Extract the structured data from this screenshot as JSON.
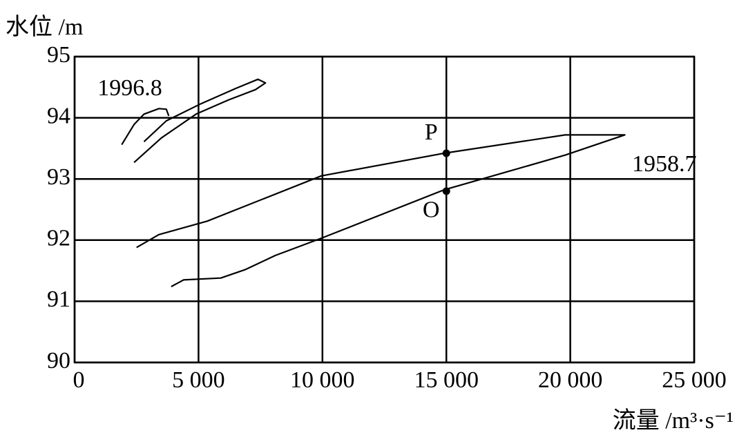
{
  "chart_data": {
    "type": "line",
    "x_label": "流量 /m³·s⁻¹",
    "y_label": "水位 /m",
    "xlim": [
      0,
      25000
    ],
    "ylim": [
      90,
      95
    ],
    "xticks": [
      0,
      {
        "value": 5000,
        "label": "5 000"
      },
      {
        "value": 10000,
        "label": "10 000"
      },
      {
        "value": 15000,
        "label": "15 000"
      },
      {
        "value": 20000,
        "label": "20 000"
      },
      {
        "value": 25000,
        "label": "25 000"
      }
    ],
    "yticks": [
      90,
      91,
      92,
      93,
      94,
      95
    ],
    "grid": true,
    "series": [
      {
        "name": "1958.7",
        "color": "#000000",
        "x": [
          3900,
          4400,
          5900,
          6900,
          8100,
          9950,
          14900,
          19800,
          22200,
          19800,
          14900,
          9950,
          5350,
          3400,
          2500
        ],
        "values": [
          91.24,
          91.35,
          91.38,
          91.52,
          91.75,
          92.03,
          92.82,
          93.39,
          93.72,
          93.72,
          93.42,
          93.05,
          92.31,
          92.09,
          91.88
        ]
      },
      {
        "name": "1996.8",
        "color": "#000000",
        "x": [
          1900,
          2400,
          2800,
          3400,
          3700,
          3800,
          null,
          2800,
          3700,
          5100,
          6500,
          7400,
          7700,
          7300,
          6200,
          4900,
          3500,
          2400
        ],
        "values": [
          93.56,
          93.89,
          94.06,
          94.15,
          94.14,
          94.03,
          null,
          93.61,
          93.95,
          94.23,
          94.48,
          94.63,
          94.57,
          94.46,
          94.29,
          94.06,
          93.67,
          93.27
        ]
      }
    ],
    "points": [
      {
        "label": "P",
        "x": 15000,
        "y": 93.42
      },
      {
        "label": "O",
        "x": 15000,
        "y": 92.8
      }
    ]
  }
}
